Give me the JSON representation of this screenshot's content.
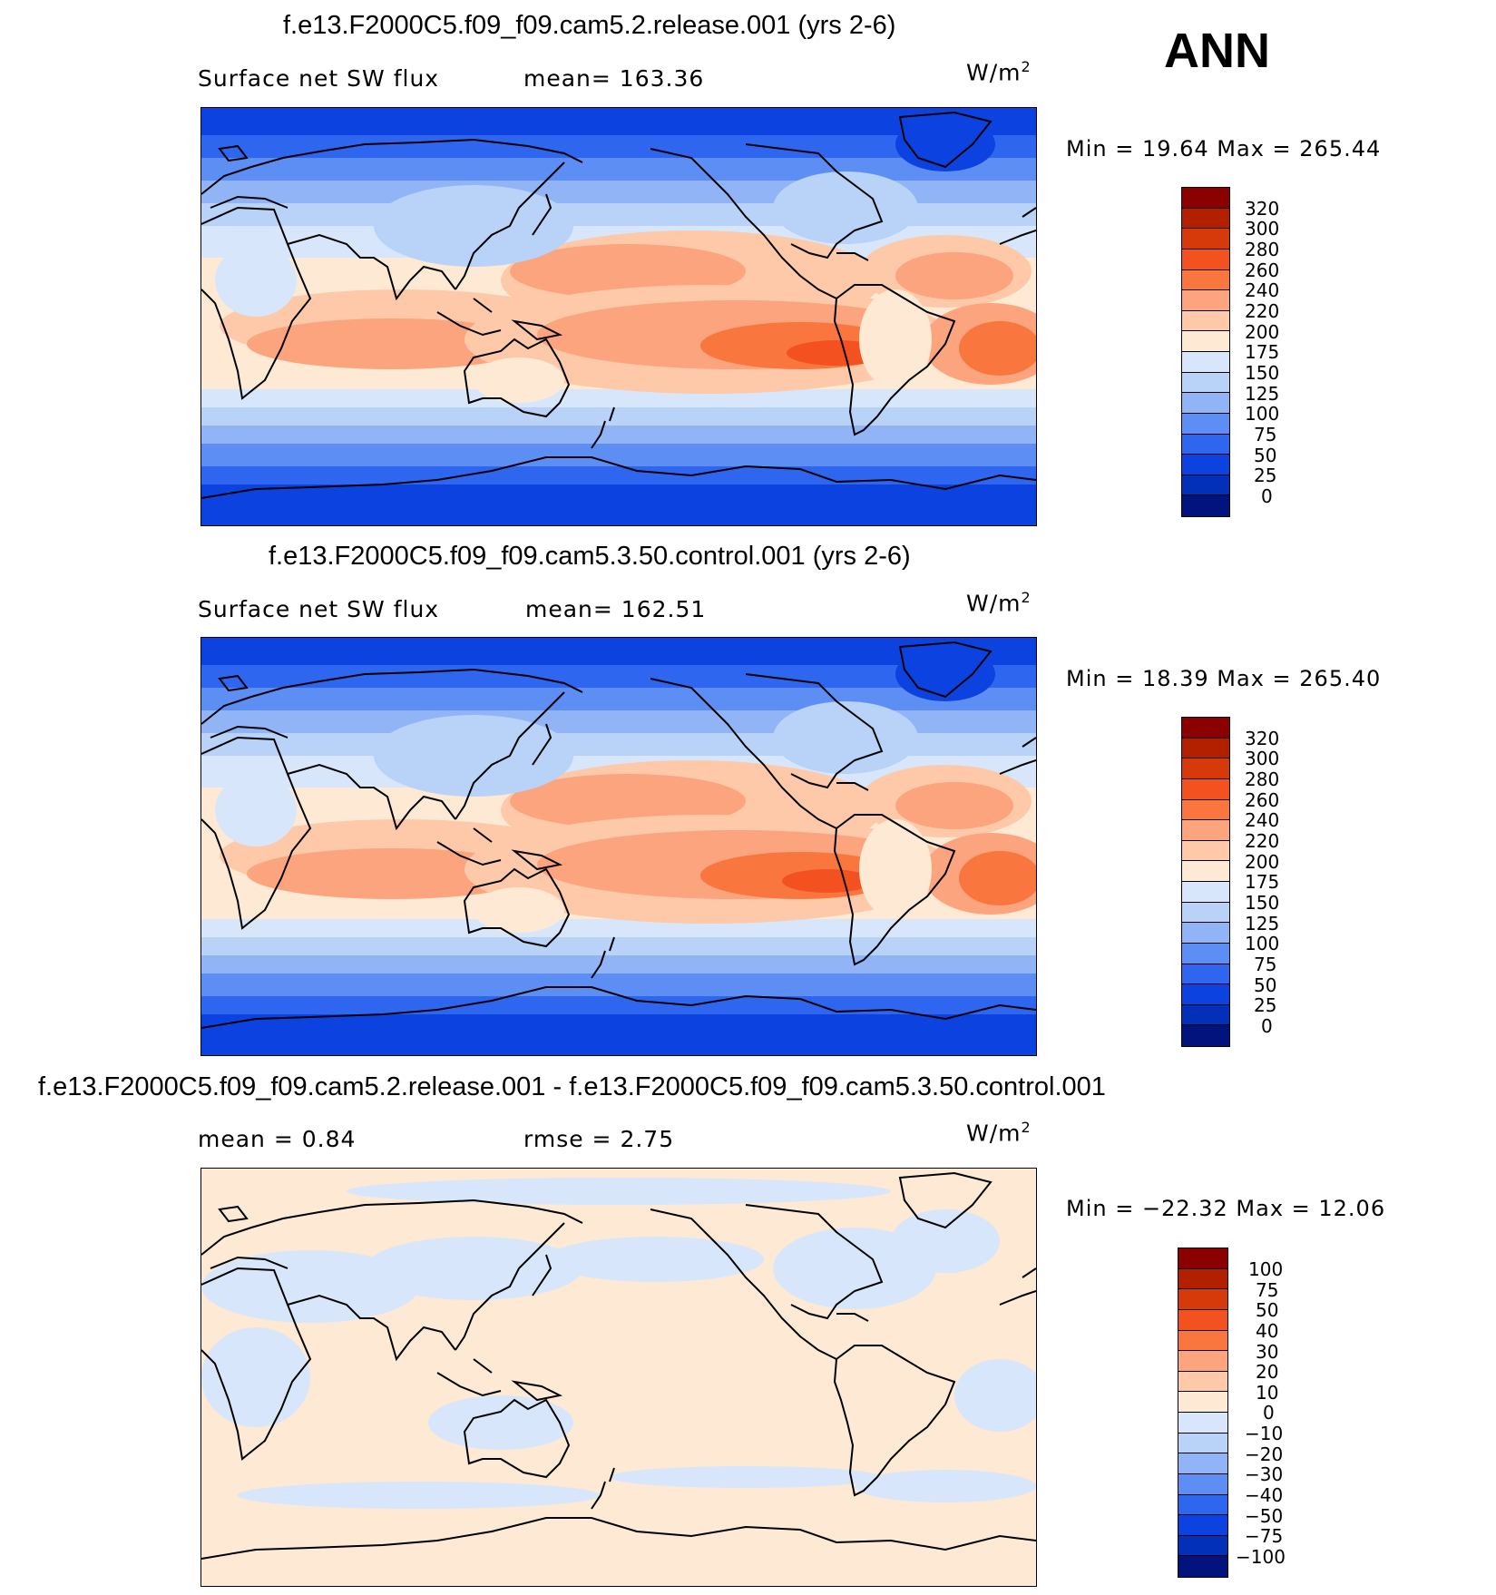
{
  "season": "ANN",
  "units_base": "W/m",
  "units_exp": "2",
  "panels": [
    {
      "title": "f.e13.F2000C5.f09_f09.cam5.2.release.001 (yrs 2-6)",
      "left_text": "Surface net SW flux",
      "mid_text": "mean=  163.36",
      "minmax": "Min =   19.64  Max  =  265.44"
    },
    {
      "title": "f.e13.F2000C5.f09_f09.cam5.3.50.control.001 (yrs 2-6)",
      "left_text": "Surface net SW flux",
      "mid_text": "mean=  162.51",
      "minmax": "Min =   18.39  Max  =  265.40"
    },
    {
      "title": "f.e13.F2000C5.f09_f09.cam5.2.release.001 - f.e13.F2000C5.f09_f09.cam5.3.50.control.001",
      "left_text": "mean  =     0.84",
      "mid_text": "rmse  =     2.75",
      "minmax": "Min  =  −22.32  Max  =    12.06"
    }
  ],
  "colorbars": {
    "field": {
      "labels": [
        "320",
        "300",
        "280",
        "260",
        "240",
        "220",
        "200",
        "175",
        "150",
        "125",
        "100",
        "75",
        "50",
        "25",
        "0"
      ],
      "colors": [
        "#8b0000",
        "#b22000",
        "#d63a0a",
        "#f45121",
        "#f9763f",
        "#fba47d",
        "#fdc9a9",
        "#fde9d4",
        "#d8e6fb",
        "#b8d2f8",
        "#90b4f5",
        "#5d8ef3",
        "#2f66ef",
        "#0c43e0",
        "#0330b8",
        "#02137e"
      ]
    },
    "diff": {
      "labels": [
        "100",
        "75",
        "50",
        "40",
        "30",
        "20",
        "10",
        "0",
        "−10",
        "−20",
        "−30",
        "−40",
        "−50",
        "−75",
        "−100"
      ],
      "colors": [
        "#8b0000",
        "#b22000",
        "#d63a0a",
        "#f45121",
        "#f9763f",
        "#fba47d",
        "#fdc9a9",
        "#fde9d4",
        "#d8e6fb",
        "#b8d2f8",
        "#90b4f5",
        "#5d8ef3",
        "#2f66ef",
        "#0c43e0",
        "#0330b8",
        "#02137e"
      ]
    }
  }
}
